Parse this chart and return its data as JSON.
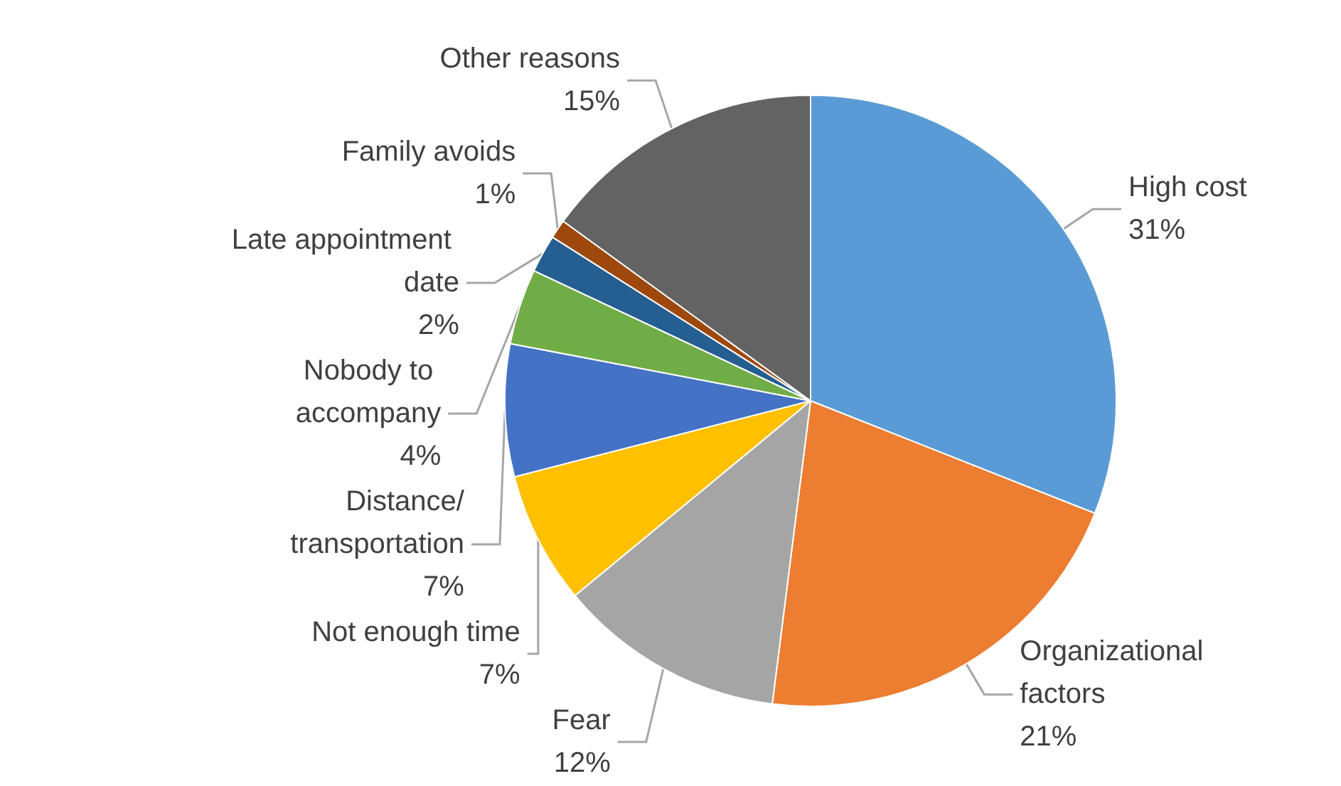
{
  "chart_data": {
    "type": "pie",
    "categories": [
      "High cost",
      "Organizational factors",
      "Fear",
      "Not enough time",
      "Distance/transportation",
      "Nobody to accompany",
      "Late appointment date",
      "Family avoids",
      "Other reasons"
    ],
    "values": [
      31,
      21,
      12,
      7,
      7,
      4,
      2,
      1,
      15
    ],
    "colors": [
      "#5b9bd5",
      "#ed7d31",
      "#a5a5a5",
      "#ffc000",
      "#4472c4",
      "#70ad47",
      "#255e91",
      "#9e480e",
      "#636363"
    ],
    "value_labels": [
      "31%",
      "21%",
      "12%",
      "7%",
      "7%",
      "4%",
      "2%",
      "1%",
      "15%"
    ],
    "legend": false
  }
}
